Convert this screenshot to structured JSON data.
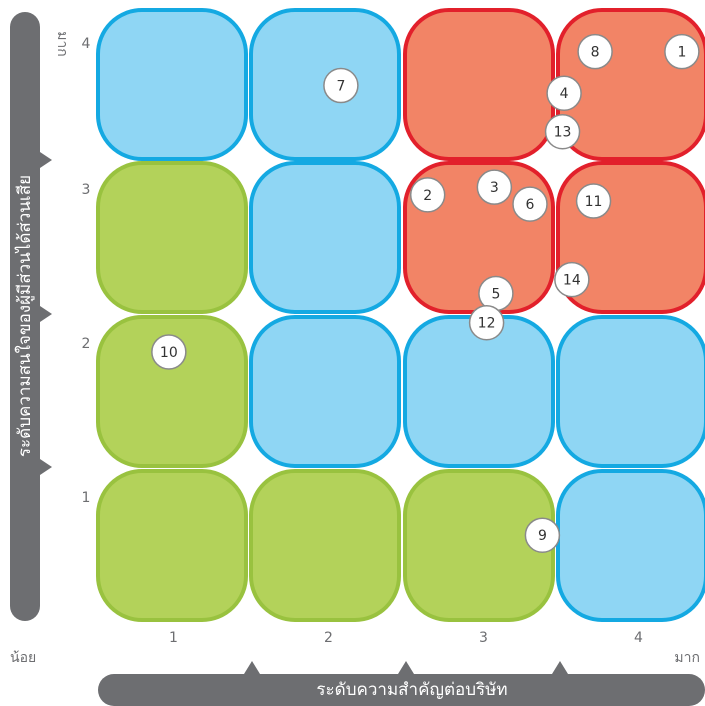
{
  "chart_data": {
    "type": "scatter",
    "title": "",
    "xlabel": "ระดับความสำคัญต่อบริษัท",
    "ylabel": "ระดับความสนใจของผู้มีส่วนได้ส่วนเสีย",
    "x_ticks": [
      "1",
      "2",
      "3",
      "4"
    ],
    "y_ticks": [
      "1",
      "2",
      "3",
      "4"
    ],
    "x_min_label": "น้อย",
    "x_max_label": "มาก",
    "y_max_label": "มาก",
    "xlim": [
      0.5,
      4.5
    ],
    "ylim": [
      0.5,
      4.5
    ],
    "cells": [
      {
        "col": 1,
        "row": 1,
        "zone": "low"
      },
      {
        "col": 2,
        "row": 1,
        "zone": "low"
      },
      {
        "col": 3,
        "row": 1,
        "zone": "low"
      },
      {
        "col": 4,
        "row": 1,
        "zone": "medium"
      },
      {
        "col": 1,
        "row": 2,
        "zone": "low"
      },
      {
        "col": 2,
        "row": 2,
        "zone": "medium"
      },
      {
        "col": 3,
        "row": 2,
        "zone": "medium"
      },
      {
        "col": 4,
        "row": 2,
        "zone": "medium"
      },
      {
        "col": 1,
        "row": 3,
        "zone": "low"
      },
      {
        "col": 2,
        "row": 3,
        "zone": "medium"
      },
      {
        "col": 3,
        "row": 3,
        "zone": "high"
      },
      {
        "col": 4,
        "row": 3,
        "zone": "high"
      },
      {
        "col": 1,
        "row": 4,
        "zone": "medium"
      },
      {
        "col": 2,
        "row": 4,
        "zone": "medium"
      },
      {
        "col": 3,
        "row": 4,
        "zone": "high"
      },
      {
        "col": 4,
        "row": 4,
        "zone": "high"
      }
    ],
    "zone_colors": {
      "low": {
        "fill": "#b3d25a",
        "stroke": "#99c23f"
      },
      "medium": {
        "fill": "#8fd6f4",
        "stroke": "#14a9e2"
      },
      "high": {
        "fill": "#f28466",
        "stroke": "#e2202b"
      }
    },
    "points": [
      {
        "label": "1",
        "x": 4.28,
        "y": 4.21
      },
      {
        "label": "2",
        "x": 2.64,
        "y": 3.28
      },
      {
        "label": "3",
        "x": 3.07,
        "y": 3.33
      },
      {
        "label": "4",
        "x": 3.52,
        "y": 3.94
      },
      {
        "label": "5",
        "x": 3.08,
        "y": 2.64
      },
      {
        "label": "6",
        "x": 3.3,
        "y": 3.22
      },
      {
        "label": "7",
        "x": 2.08,
        "y": 3.99
      },
      {
        "label": "8",
        "x": 3.72,
        "y": 4.21
      },
      {
        "label": "9",
        "x": 3.38,
        "y": 1.07
      },
      {
        "label": "10",
        "x": 0.97,
        "y": 2.26
      },
      {
        "label": "11",
        "x": 3.71,
        "y": 3.24
      },
      {
        "label": "12",
        "x": 3.02,
        "y": 2.45
      },
      {
        "label": "13",
        "x": 3.51,
        "y": 3.69
      },
      {
        "label": "14",
        "x": 3.57,
        "y": 2.73
      }
    ]
  }
}
